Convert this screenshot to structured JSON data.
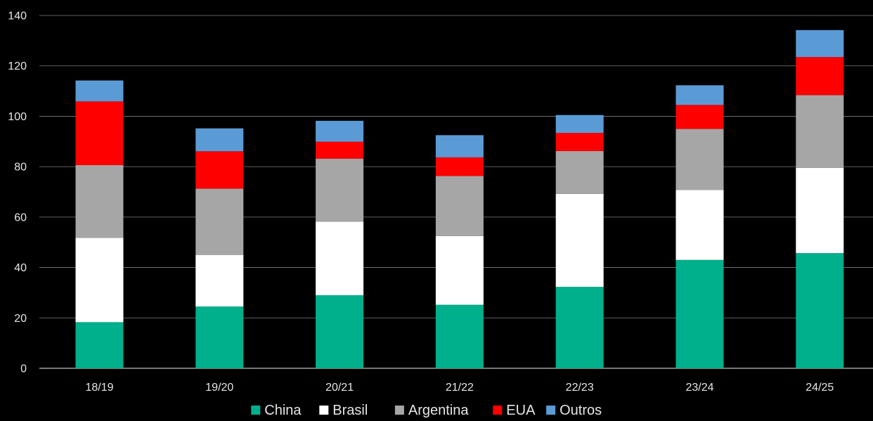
{
  "chart_data": {
    "type": "bar",
    "stacked": true,
    "title": "",
    "xlabel": "",
    "ylabel": "",
    "ylim": [
      0,
      140
    ],
    "yticks": [
      0,
      20,
      40,
      60,
      80,
      100,
      120,
      140
    ],
    "grid": true,
    "legend_position": "bottom",
    "categories": [
      "18/19",
      "19/20",
      "20/21",
      "21/22",
      "22/23",
      "23/24",
      "24/25"
    ],
    "series": [
      {
        "name": "China",
        "color": "#00b08c",
        "values": [
          18.3,
          24.5,
          29.0,
          25.2,
          32.3,
          43.0,
          45.7
        ]
      },
      {
        "name": "Brasil",
        "color": "#ffffff",
        "values": [
          33.5,
          20.5,
          29.2,
          27.3,
          36.9,
          27.7,
          33.8
        ]
      },
      {
        "name": "Argentina",
        "color": "#a6a6a6",
        "values": [
          28.8,
          26.3,
          25.0,
          23.8,
          17.0,
          24.3,
          28.9
        ]
      },
      {
        "name": "EUA",
        "color": "#ff0000",
        "values": [
          25.3,
          14.8,
          6.7,
          7.4,
          7.2,
          9.5,
          15.1
        ]
      },
      {
        "name": "Outros",
        "color": "#5b9bd5",
        "values": [
          8.3,
          9.1,
          8.3,
          8.8,
          7.1,
          7.8,
          10.7
        ]
      }
    ]
  }
}
